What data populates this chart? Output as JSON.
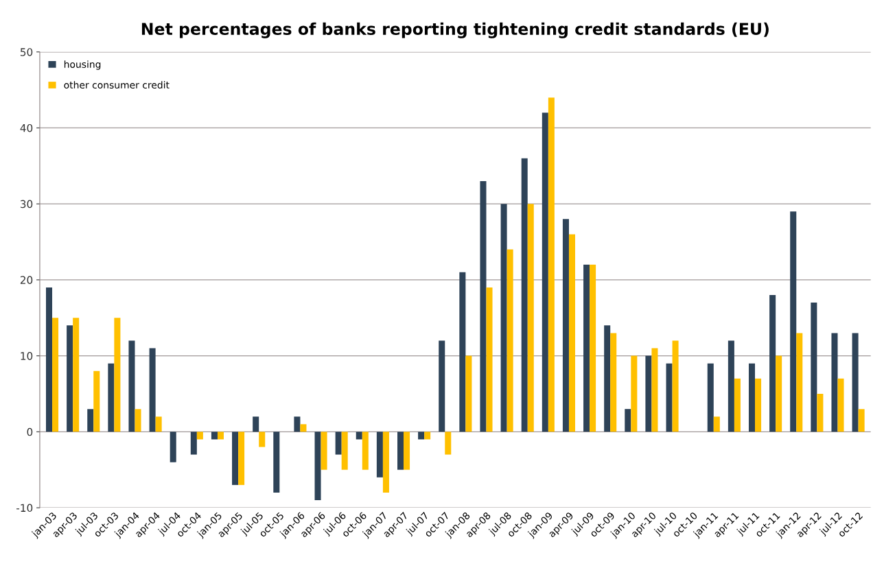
{
  "chart_data": {
    "type": "bar",
    "title": "Net percentages of banks reporting tightening credit standards (EU)",
    "categories": [
      "jan-03",
      "apr-03",
      "jul-03",
      "oct-03",
      "jan-04",
      "apr-04",
      "jul-04",
      "oct-04",
      "jan-05",
      "apr-05",
      "jul-05",
      "oct-05",
      "jan-06",
      "apr-06",
      "jul-06",
      "oct-06",
      "jan-07",
      "apr-07",
      "jul-07",
      "oct-07",
      "jan-08",
      "apr-08",
      "jul-08",
      "oct-08",
      "jan-09",
      "apr-09",
      "jul-09",
      "oct-09",
      "jan-10",
      "apr-10",
      "jul-10",
      "oct-10",
      "jan-11",
      "apr-11",
      "jul-11",
      "oct-11",
      "jan-12",
      "apr-12",
      "jul-12",
      "oct-12"
    ],
    "series": [
      {
        "name": "housing",
        "color": "#2e4358",
        "values": [
          19,
          14,
          3,
          9,
          12,
          11,
          -4,
          -3,
          -1,
          -7,
          2,
          -8,
          2,
          -9,
          -3,
          -1,
          -6,
          -5,
          -1,
          12,
          21,
          33,
          30,
          36,
          42,
          28,
          22,
          14,
          3,
          10,
          9,
          null,
          9,
          12,
          9,
          18,
          29,
          17,
          13,
          13
        ]
      },
      {
        "name": "other consumer credit",
        "color": "#ffc000",
        "values": [
          15,
          15,
          8,
          15,
          3,
          2,
          0,
          -1,
          -1,
          -7,
          -2,
          0,
          1,
          -5,
          -5,
          -5,
          -8,
          -5,
          -1,
          -3,
          10,
          19,
          24,
          30,
          44,
          26,
          22,
          13,
          10,
          11,
          12,
          null,
          2,
          7,
          7,
          10,
          13,
          5,
          7,
          3
        ]
      }
    ],
    "ylim": [
      -10,
      50
    ],
    "yticks": [
      -10,
      0,
      10,
      20,
      30,
      40,
      50
    ],
    "grid": "y",
    "legend": "top left"
  }
}
